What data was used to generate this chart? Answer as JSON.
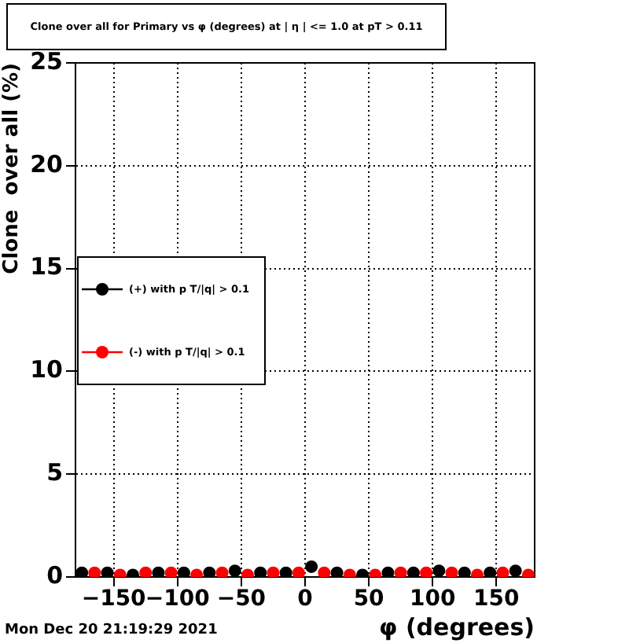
{
  "chart_data": {
    "type": "scatter",
    "title": "Clone  over all for Primary vs φ (degrees) at | η | <= 1.0 at pT > 0.11",
    "xlabel": "φ (degrees)",
    "ylabel": "Clone  over all (%)",
    "xlim": [
      -180,
      180
    ],
    "ylim": [
      0,
      25
    ],
    "xticks": [
      -150,
      -100,
      -50,
      0,
      50,
      100,
      150
    ],
    "yticks": [
      0,
      5,
      10,
      15,
      20,
      25
    ],
    "grid": true,
    "legend": "left",
    "marker": "circle",
    "series": [
      {
        "name": "(+) with p T/|q| > 0.1",
        "color": "#000000",
        "x": [
          -175,
          -155,
          -135,
          -115,
          -95,
          -75,
          -55,
          -35,
          -15,
          5,
          25,
          45,
          65,
          85,
          105,
          125,
          145,
          165
        ],
        "values": [
          0.2,
          0.2,
          0.1,
          0.2,
          0.2,
          0.2,
          0.3,
          0.2,
          0.2,
          0.5,
          0.2,
          0.1,
          0.2,
          0.2,
          0.3,
          0.2,
          0.2,
          0.3
        ]
      },
      {
        "name": "(-) with p T/|q| > 0.1",
        "color": "#ff0000",
        "x": [
          -165,
          -145,
          -125,
          -105,
          -85,
          -65,
          -45,
          -25,
          -5,
          15,
          35,
          55,
          75,
          95,
          115,
          135,
          155,
          175
        ],
        "values": [
          0.2,
          0.1,
          0.2,
          0.2,
          0.1,
          0.2,
          0.1,
          0.2,
          0.2,
          0.2,
          0.1,
          0.1,
          0.2,
          0.2,
          0.2,
          0.1,
          0.2,
          0.1
        ]
      }
    ],
    "annotations": [
      "Mon Dec 20 21:19:29 2021"
    ]
  }
}
